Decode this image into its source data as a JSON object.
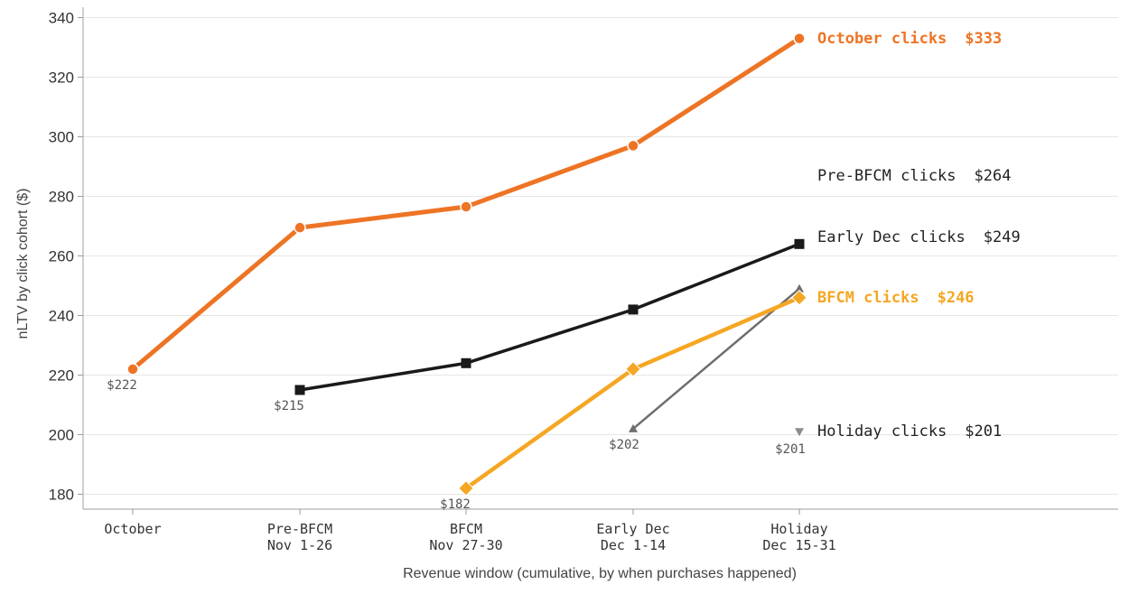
{
  "chart_data": {
    "type": "line",
    "xlabel": "Revenue window (cumulative, by when purchases happened)",
    "ylabel": "nLTV by click cohort ($)",
    "ylim": [
      175,
      342
    ],
    "yticks": [
      180,
      200,
      220,
      240,
      260,
      280,
      300,
      320,
      340
    ],
    "grid": "horizontal",
    "categories": [
      [
        "October"
      ],
      [
        "Pre-BFCM",
        "Nov 1-26"
      ],
      [
        "BFCM",
        "Nov 27-30"
      ],
      [
        "Early Dec",
        "Dec 1-14"
      ],
      [
        "Holiday",
        "Dec 15-31"
      ]
    ],
    "series": [
      {
        "key": "october",
        "color": "#EE7425",
        "marker": "circle",
        "values": [
          222,
          269.5,
          276.5,
          297,
          333
        ],
        "start_label": "$222",
        "end_name": "October clicks",
        "end_value": "$333"
      },
      {
        "key": "early_dec_line",
        "color": "#1A1A1A",
        "marker": "square",
        "values": [
          null,
          215,
          224,
          242,
          264
        ],
        "start_label": "$215",
        "end_name": "Pre-BFCM clicks",
        "end_value": "$264"
      },
      {
        "key": "bfcm",
        "color": "#F5A623",
        "marker": "diamond",
        "values": [
          null,
          null,
          182,
          222,
          246
        ],
        "start_label": "$182",
        "end_name": "BFCM clicks",
        "end_value": "$246"
      },
      {
        "key": "early_dec",
        "color": "#6E6E6E",
        "marker": "triangle-up",
        "values": [
          null,
          null,
          null,
          202,
          249
        ],
        "start_label": "$202",
        "end_name": "Early Dec clicks",
        "end_value": "$249"
      },
      {
        "key": "holiday",
        "color": "#8C8C8C",
        "marker": "triangle-down",
        "values": [
          null,
          null,
          null,
          null,
          201
        ],
        "start_label": "$201",
        "end_name": "Holiday clicks",
        "end_value": "$201"
      }
    ]
  }
}
